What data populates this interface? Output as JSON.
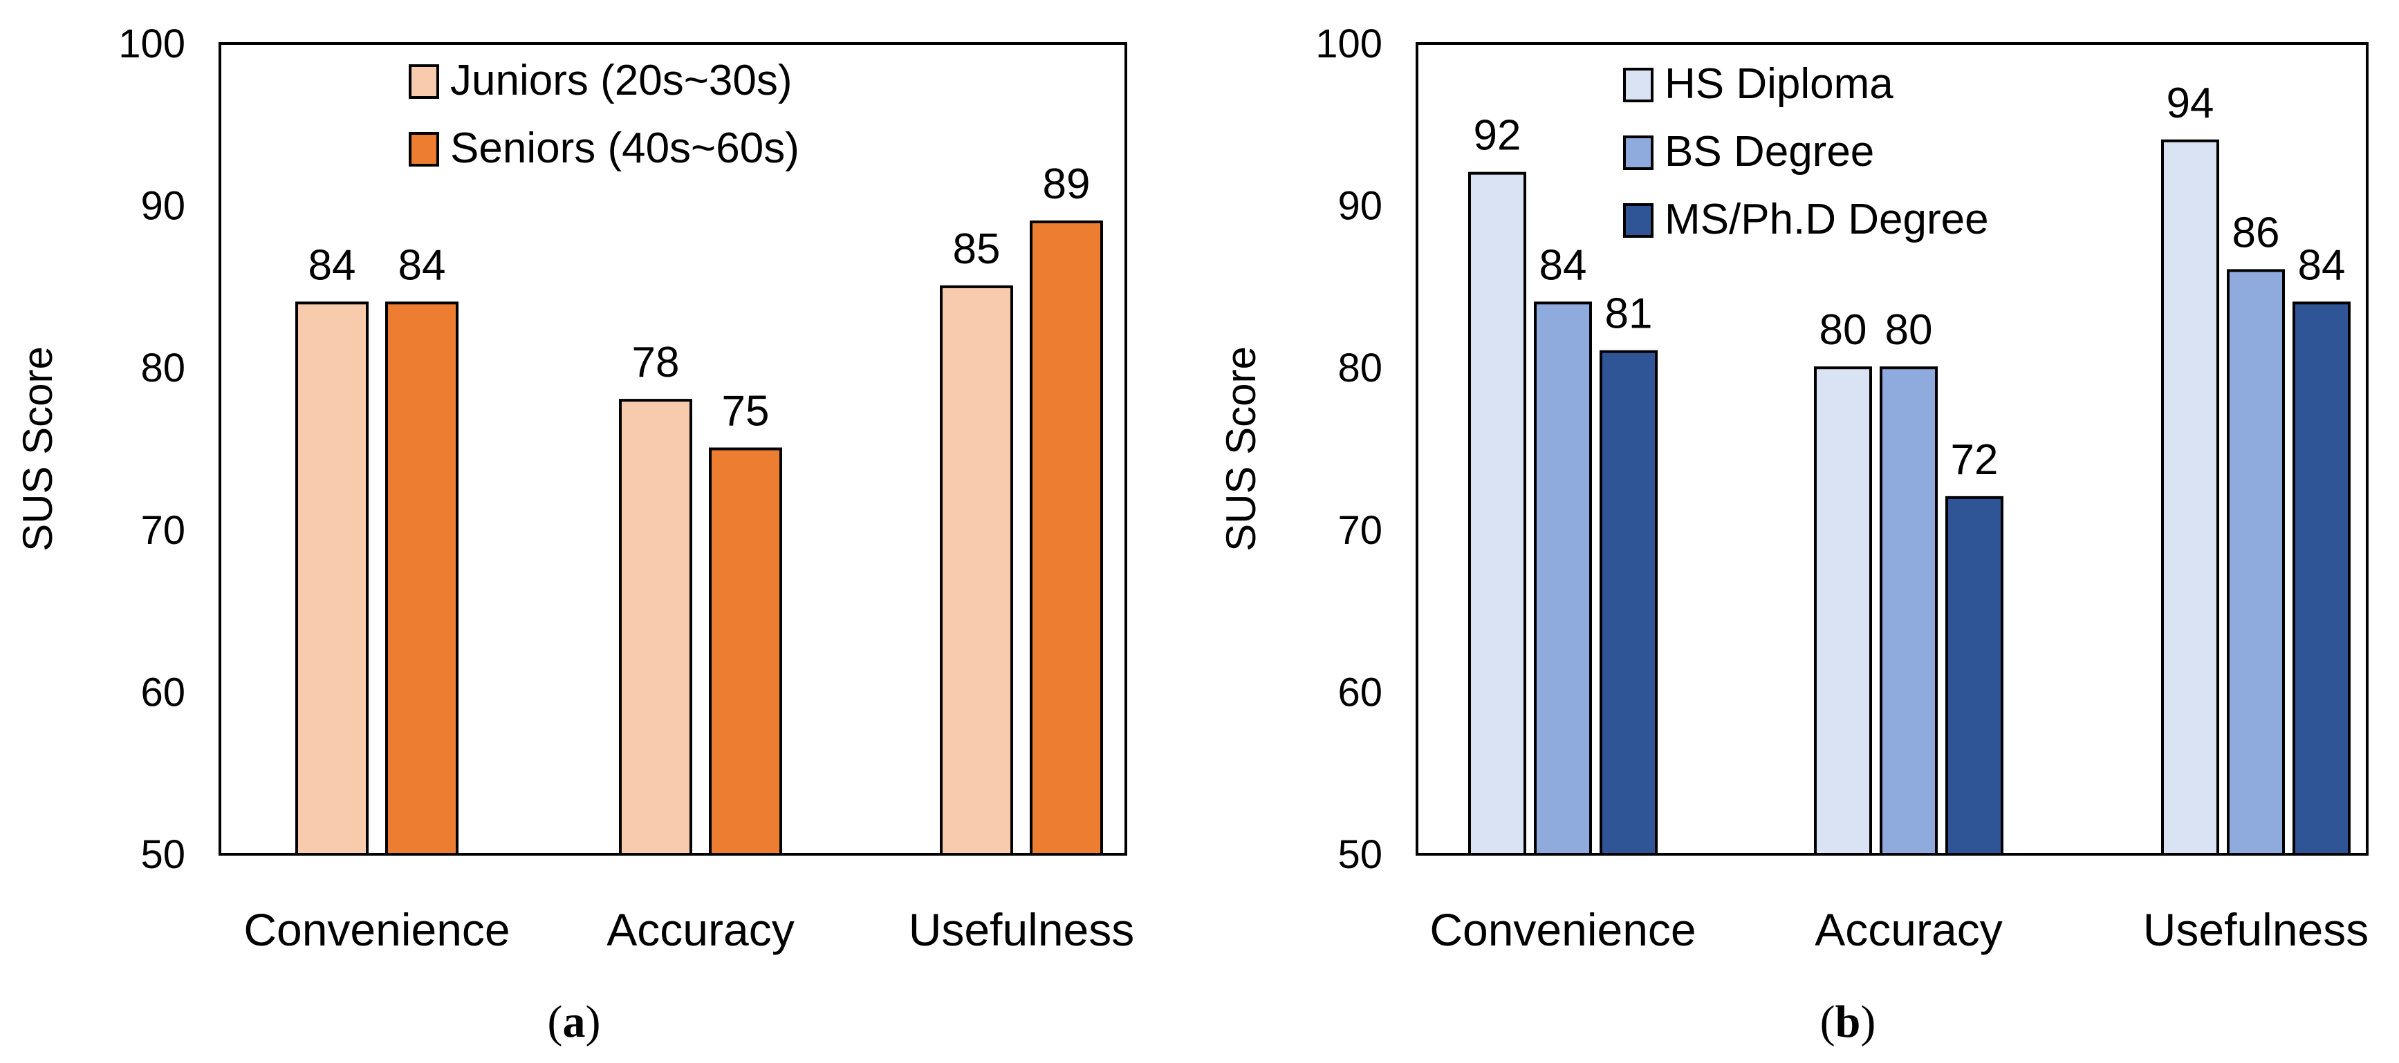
{
  "chart_data": [
    {
      "type": "bar",
      "panel_label": "a",
      "ylabel": "SUS Score",
      "xlabel": "",
      "ylim": [
        50,
        100
      ],
      "yticks": [
        50,
        60,
        70,
        80,
        90,
        100
      ],
      "categories": [
        "Convenience",
        "Accuracy",
        "Usefulness"
      ],
      "legend_position": "top-center",
      "series": [
        {
          "name": "Juniors (20s~30s)",
          "color": "#F8CBAD",
          "values": [
            84,
            78,
            85
          ]
        },
        {
          "name": "Seniors (40s~60s)",
          "color": "#ED7D31",
          "values": [
            84,
            75,
            89
          ]
        }
      ]
    },
    {
      "type": "bar",
      "panel_label": "b",
      "ylabel": "SUS Score",
      "xlabel": "",
      "ylim": [
        50,
        100
      ],
      "yticks": [
        50,
        60,
        70,
        80,
        90,
        100
      ],
      "categories": [
        "Convenience",
        "Accuracy",
        "Usefulness"
      ],
      "legend_position": "top-left",
      "series": [
        {
          "name": "HS Diploma",
          "color": "#DAE3F3",
          "values": [
            92,
            80,
            94
          ]
        },
        {
          "name": "BS Degree",
          "color": "#8FAADC",
          "values": [
            84,
            80,
            86
          ]
        },
        {
          "name": "MS/Ph.D Degree",
          "color": "#2F5597",
          "values": [
            81,
            72,
            84
          ]
        }
      ]
    }
  ]
}
